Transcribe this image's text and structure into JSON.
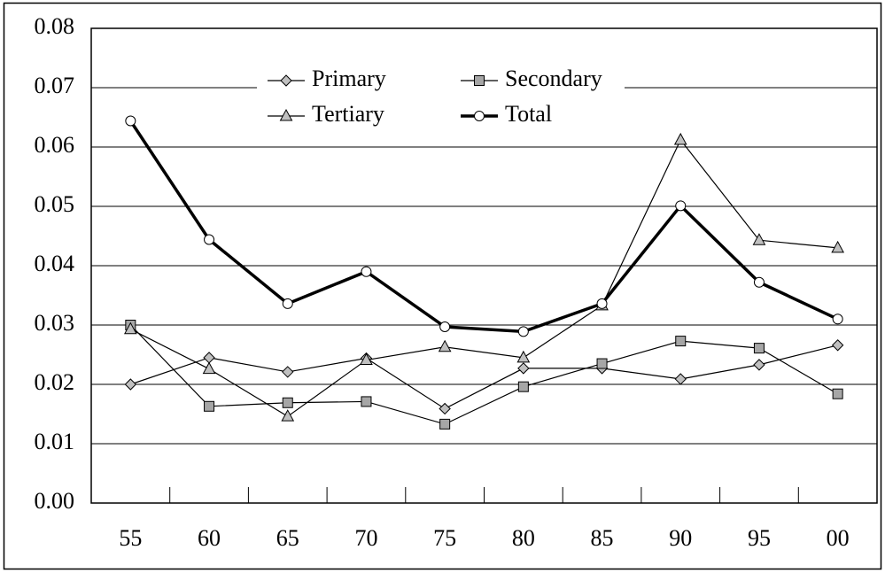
{
  "chart_data": {
    "type": "line",
    "categories": [
      "55",
      "60",
      "65",
      "70",
      "75",
      "80",
      "85",
      "90",
      "95",
      "00"
    ],
    "series": [
      {
        "name": "Primary",
        "color": "#c0c0c0",
        "values": [
          0.02,
          0.0245,
          0.0221,
          0.0244,
          0.0159,
          0.0227,
          0.0227,
          0.0209,
          0.0233,
          0.0266
        ]
      },
      {
        "name": "Secondary",
        "color": "#a6a6a6",
        "values": [
          0.03,
          0.0163,
          0.0169,
          0.0171,
          0.0133,
          0.0196,
          0.0235,
          0.0273,
          0.0261,
          0.0184
        ]
      },
      {
        "name": "Tertiary",
        "color": "#c0c0c0",
        "values": [
          0.0293,
          0.0226,
          0.0146,
          0.0241,
          0.0263,
          0.0245,
          0.0333,
          0.0612,
          0.0443,
          0.043
        ]
      },
      {
        "name": "Total",
        "color": "#ffffff",
        "values": [
          0.0644,
          0.0444,
          0.0336,
          0.039,
          0.0297,
          0.0289,
          0.0336,
          0.0501,
          0.0372,
          0.031
        ]
      }
    ],
    "ylim": [
      0,
      0.08
    ],
    "yticks": [
      {
        "value": 0,
        "label": "0.00"
      },
      0.01,
      0.02,
      0.03,
      0.04,
      0.05,
      0.06,
      0.07,
      0.08
    ],
    "grid": true
  }
}
